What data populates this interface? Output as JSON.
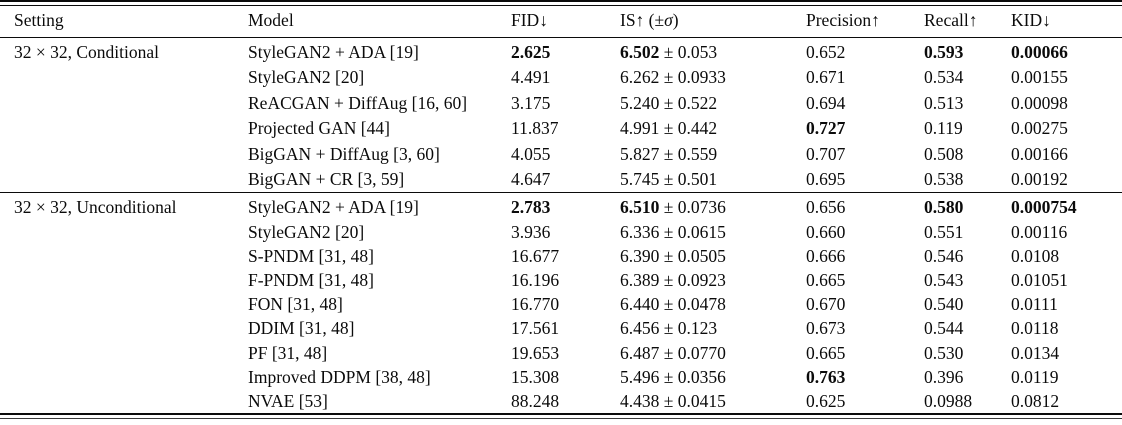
{
  "table": {
    "plus_minus": "±",
    "columns": [
      {
        "id": "setting",
        "label": "Setting"
      },
      {
        "id": "model",
        "label": "Model"
      },
      {
        "id": "fid",
        "label": "FID↓"
      },
      {
        "id": "is",
        "label_prefix": "IS↑ (±",
        "label_sigma": "σ",
        "label_suffix": ")"
      },
      {
        "id": "precision",
        "label": "Precision↑"
      },
      {
        "id": "recall",
        "label": "Recall↑"
      },
      {
        "id": "kid",
        "label": "KID↓"
      }
    ],
    "sections": [
      {
        "setting": "32 × 32, Conditional",
        "rows": [
          {
            "model": "StyleGAN2 + ADA [19]",
            "fid": "2.625",
            "fid_bold": true,
            "is_mean": "6.502",
            "is_mean_bold": true,
            "is_std": "0.053",
            "precision": "0.652",
            "recall": "0.593",
            "recall_bold": true,
            "kid": "0.00066",
            "kid_bold": true
          },
          {
            "model": "StyleGAN2 [20]",
            "fid": "4.491",
            "is_mean": "6.262",
            "is_std": "0.0933",
            "precision": "0.671",
            "recall": "0.534",
            "kid": "0.00155"
          },
          {
            "model": "ReACGAN + DiffAug [16, 60]",
            "fid": "3.175",
            "is_mean": "5.240",
            "is_std": "0.522",
            "precision": "0.694",
            "recall": "0.513",
            "kid": "0.00098"
          },
          {
            "model": "Projected GAN [44]",
            "fid": "11.837",
            "is_mean": "4.991",
            "is_std": "0.442",
            "precision": "0.727",
            "precision_bold": true,
            "recall": "0.119",
            "kid": "0.00275"
          },
          {
            "model": "BigGAN + DiffAug [3, 60]",
            "fid": "4.055",
            "is_mean": "5.827",
            "is_std": "0.559",
            "precision": "0.707",
            "recall": "0.508",
            "kid": "0.00166"
          },
          {
            "model": "BigGAN + CR [3, 59]",
            "fid": "4.647",
            "is_mean": "5.745",
            "is_std": "0.501",
            "precision": "0.695",
            "recall": "0.538",
            "kid": "0.00192"
          }
        ]
      },
      {
        "setting": "32 × 32, Unconditional",
        "rows": [
          {
            "model": "StyleGAN2 + ADA [19]",
            "fid": "2.783",
            "fid_bold": true,
            "is_mean": "6.510",
            "is_mean_bold": true,
            "is_std": "0.0736",
            "precision": "0.656",
            "recall": "0.580",
            "recall_bold": true,
            "kid": "0.000754",
            "kid_bold": true
          },
          {
            "model": "StyleGAN2 [20]",
            "fid": "3.936",
            "is_mean": "6.336",
            "is_std": "0.0615",
            "precision": "0.660",
            "recall": "0.551",
            "kid": "0.00116"
          },
          {
            "model": "S-PNDM [31, 48]",
            "fid": "16.677",
            "is_mean": "6.390",
            "is_std": "0.0505",
            "precision": "0.666",
            "recall": "0.546",
            "kid": "0.0108"
          },
          {
            "model": "F-PNDM [31, 48]",
            "fid": "16.196",
            "is_mean": "6.389",
            "is_std": "0.0923",
            "precision": "0.665",
            "recall": "0.543",
            "kid": "0.01051"
          },
          {
            "model": "FON [31, 48]",
            "fid": "16.770",
            "is_mean": "6.440",
            "is_std": "0.0478",
            "precision": "0.670",
            "recall": "0.540",
            "kid": "0.0111"
          },
          {
            "model": "DDIM [31, 48]",
            "fid": "17.561",
            "is_mean": "6.456",
            "is_std": "0.123",
            "precision": "0.673",
            "recall": "0.544",
            "kid": "0.0118"
          },
          {
            "model": "PF [31, 48]",
            "fid": "19.653",
            "is_mean": "6.487",
            "is_std": "0.0770",
            "precision": "0.665",
            "recall": "0.530",
            "kid": "0.0134"
          },
          {
            "model": "Improved DDPM [38, 48]",
            "fid": "15.308",
            "is_mean": "5.496",
            "is_std": "0.0356",
            "precision": "0.763",
            "precision_bold": true,
            "recall": "0.396",
            "kid": "0.0119"
          },
          {
            "model": "NVAE [53]",
            "fid": "88.248",
            "is_mean": "4.438",
            "is_std": "0.0415",
            "precision": "0.625",
            "recall": "0.0988",
            "kid": "0.0812"
          }
        ]
      }
    ]
  }
}
